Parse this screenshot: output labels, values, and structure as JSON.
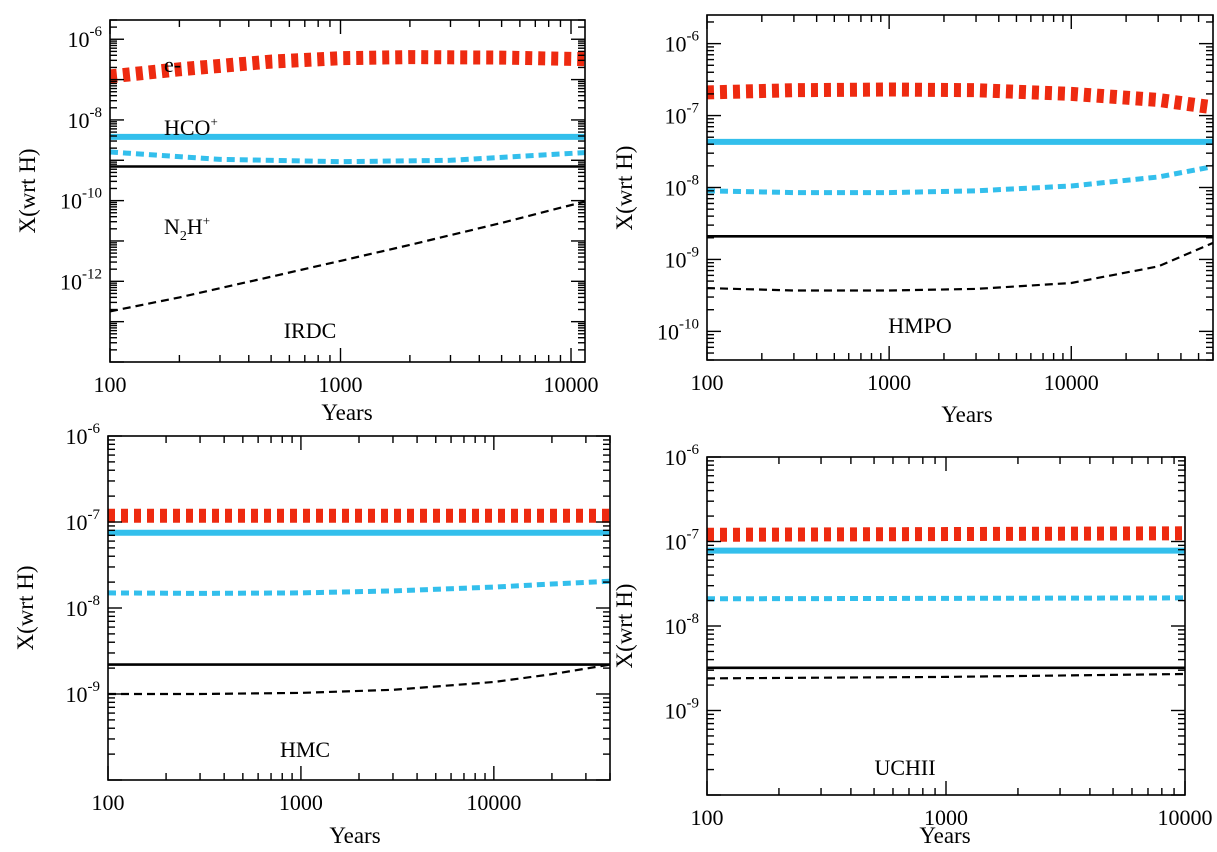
{
  "colors": {
    "electrons": "#ee2a10",
    "hco_plus": "#33bfec",
    "n2h_plus": "#000000"
  },
  "chart_data": [
    {
      "type": "line",
      "panel": "top-left",
      "annotation": "IRDC",
      "xlabel": "Years",
      "ylabel": "X(wrt H)",
      "xscale": "log",
      "yscale": "log",
      "xlim": [
        100,
        11500
      ],
      "ylim": [
        1e-14,
        3e-06
      ],
      "xticks": [
        100,
        1000,
        10000
      ],
      "xtick_labels": [
        "100",
        "1000",
        "10000"
      ],
      "yticks": [
        1e-12,
        1e-10,
        1e-08,
        1e-06
      ],
      "ytick_labels": [
        {
          "base": "10",
          "exp": "-12"
        },
        {
          "base": "10",
          "exp": "-10"
        },
        {
          "base": "10",
          "exp": "-8"
        },
        {
          "base": "10",
          "exp": "-6"
        }
      ],
      "species_labels": [
        {
          "text": "e-"
        },
        {
          "text": "HCO",
          "sup": "+"
        },
        {
          "pre": "N",
          "sub": "2",
          "post": "H",
          "sup": "+"
        }
      ],
      "series": [
        {
          "id": "e_dashed",
          "style": "red-thick-dotted",
          "x": [
            100,
            200,
            500,
            1000,
            2000,
            5000,
            11500
          ],
          "y": [
            1.2e-07,
            1.8e-07,
            2.8e-07,
            3.4e-07,
            3.6e-07,
            3.5e-07,
            3.2e-07
          ]
        },
        {
          "id": "hco_solid",
          "style": "cyan-thick-solid",
          "x": [
            100,
            11500
          ],
          "y": [
            3.8e-09,
            3.8e-09
          ]
        },
        {
          "id": "hco_dashed",
          "style": "cyan-dotted",
          "x": [
            100,
            300,
            1000,
            3000,
            11500
          ],
          "y": [
            1.6e-09,
            1.05e-09,
            9.2e-10,
            1e-09,
            1.55e-09
          ]
        },
        {
          "id": "n2h_solid",
          "style": "black-solid",
          "x": [
            100,
            11500
          ],
          "y": [
            7e-10,
            7e-10
          ]
        },
        {
          "id": "n2h_dashed",
          "style": "black-dashed",
          "x": [
            100,
            200,
            500,
            1000,
            2000,
            5000,
            11500
          ],
          "y": [
            1.8e-13,
            4e-13,
            1.3e-12,
            3.2e-12,
            8e-12,
            2.8e-11,
            9.5e-11
          ]
        }
      ]
    },
    {
      "type": "line",
      "panel": "top-right",
      "annotation": "HMPO",
      "xlabel": "Years",
      "ylabel": "X(wrt H)",
      "xscale": "log",
      "yscale": "log",
      "xlim": [
        100,
        60000
      ],
      "ylim": [
        4e-11,
        2.5e-06
      ],
      "xticks": [
        100,
        1000,
        10000
      ],
      "xtick_labels": [
        "100",
        "1000",
        "10000"
      ],
      "yticks": [
        1e-10,
        1e-09,
        1e-08,
        1e-07,
        1e-06
      ],
      "ytick_labels": [
        {
          "base": "10",
          "exp": "-10"
        },
        {
          "base": "10",
          "exp": "-9"
        },
        {
          "base": "10",
          "exp": "-8"
        },
        {
          "base": "10",
          "exp": "-7"
        },
        {
          "base": "10",
          "exp": "-6"
        }
      ],
      "series": [
        {
          "id": "e_dashed",
          "style": "red-thick-dotted",
          "x": [
            100,
            300,
            1000,
            3000,
            10000,
            30000,
            60000
          ],
          "y": [
            2.1e-07,
            2.25e-07,
            2.3e-07,
            2.25e-07,
            2e-07,
            1.65e-07,
            1.3e-07
          ]
        },
        {
          "id": "hco_solid",
          "style": "cyan-thick-solid",
          "x": [
            100,
            60000
          ],
          "y": [
            4.3e-08,
            4.3e-08
          ]
        },
        {
          "id": "hco_dashed",
          "style": "cyan-dotted",
          "x": [
            100,
            300,
            1000,
            3000,
            10000,
            30000,
            60000
          ],
          "y": [
            9e-09,
            8.5e-09,
            8.5e-09,
            9e-09,
            1.05e-08,
            1.4e-08,
            1.95e-08
          ]
        },
        {
          "id": "n2h_solid",
          "style": "black-solid",
          "x": [
            100,
            60000
          ],
          "y": [
            2.1e-09,
            2.1e-09
          ]
        },
        {
          "id": "n2h_dashed",
          "style": "black-dashed",
          "x": [
            100,
            300,
            1000,
            3000,
            10000,
            30000,
            60000
          ],
          "y": [
            4e-10,
            3.7e-10,
            3.7e-10,
            3.9e-10,
            4.7e-10,
            8e-10,
            1.7e-09
          ]
        }
      ]
    },
    {
      "type": "line",
      "panel": "bottom-left",
      "annotation": "HMC",
      "xlabel": "Years",
      "ylabel": "X(wrt H)",
      "xscale": "log",
      "yscale": "log",
      "xlim": [
        100,
        40000
      ],
      "ylim": [
        1e-10,
        1e-06
      ],
      "xticks": [
        100,
        1000,
        10000
      ],
      "xtick_labels": [
        "100",
        "1000",
        "10000"
      ],
      "yticks": [
        1e-09,
        1e-08,
        1e-07,
        1e-06
      ],
      "ytick_labels": [
        {
          "base": "10",
          "exp": "-9"
        },
        {
          "base": "10",
          "exp": "-8"
        },
        {
          "base": "10",
          "exp": "-7"
        },
        {
          "base": "10",
          "exp": "-6"
        }
      ],
      "series": [
        {
          "id": "e_dashed",
          "style": "red-thick-dotted",
          "x": [
            100,
            40000
          ],
          "y": [
            1.18e-07,
            1.18e-07
          ]
        },
        {
          "id": "hco_solid",
          "style": "cyan-thick-solid",
          "x": [
            100,
            40000
          ],
          "y": [
            7.5e-08,
            7.5e-08
          ]
        },
        {
          "id": "hco_dashed",
          "style": "cyan-dotted",
          "x": [
            100,
            300,
            1000,
            3000,
            10000,
            20000,
            40000
          ],
          "y": [
            1.5e-08,
            1.48e-08,
            1.5e-08,
            1.58e-08,
            1.75e-08,
            1.9e-08,
            2.05e-08
          ]
        },
        {
          "id": "n2h_solid",
          "style": "black-solid",
          "x": [
            100,
            40000
          ],
          "y": [
            2.2e-09,
            2.2e-09
          ]
        },
        {
          "id": "n2h_dashed",
          "style": "black-dashed",
          "x": [
            100,
            300,
            1000,
            3000,
            10000,
            20000,
            40000
          ],
          "y": [
            1e-09,
            1e-09,
            1.03e-09,
            1.12e-09,
            1.38e-09,
            1.7e-09,
            2.2e-09
          ]
        }
      ]
    },
    {
      "type": "line",
      "panel": "bottom-right",
      "annotation": "UCHII",
      "xlabel": "Years",
      "ylabel": "X(wrt H)",
      "xscale": "log",
      "yscale": "log",
      "xlim": [
        100,
        10000
      ],
      "ylim": [
        1e-10,
        1e-06
      ],
      "xticks": [
        100,
        1000,
        10000
      ],
      "xtick_labels": [
        "100",
        "1000",
        "10000"
      ],
      "yticks": [
        1e-09,
        1e-08,
        1e-07,
        1e-06
      ],
      "ytick_labels": [
        {
          "base": "10",
          "exp": "-9"
        },
        {
          "base": "10",
          "exp": "-8"
        },
        {
          "base": "10",
          "exp": "-7"
        },
        {
          "base": "10",
          "exp": "-6"
        }
      ],
      "series": [
        {
          "id": "e_dashed",
          "style": "red-thick-dotted",
          "x": [
            100,
            10000
          ],
          "y": [
            1.2e-07,
            1.25e-07
          ]
        },
        {
          "id": "hco_solid",
          "style": "cyan-thick-solid",
          "x": [
            100,
            10000
          ],
          "y": [
            7.8e-08,
            7.8e-08
          ]
        },
        {
          "id": "hco_dashed",
          "style": "cyan-dotted",
          "x": [
            100,
            10000
          ],
          "y": [
            2.1e-08,
            2.15e-08
          ]
        },
        {
          "id": "n2h_solid",
          "style": "black-solid",
          "x": [
            100,
            10000
          ],
          "y": [
            3.2e-09,
            3.2e-09
          ]
        },
        {
          "id": "n2h_dashed",
          "style": "black-dashed",
          "x": [
            100,
            1000,
            10000
          ],
          "y": [
            2.4e-09,
            2.5e-09,
            2.7e-09
          ]
        }
      ]
    }
  ]
}
